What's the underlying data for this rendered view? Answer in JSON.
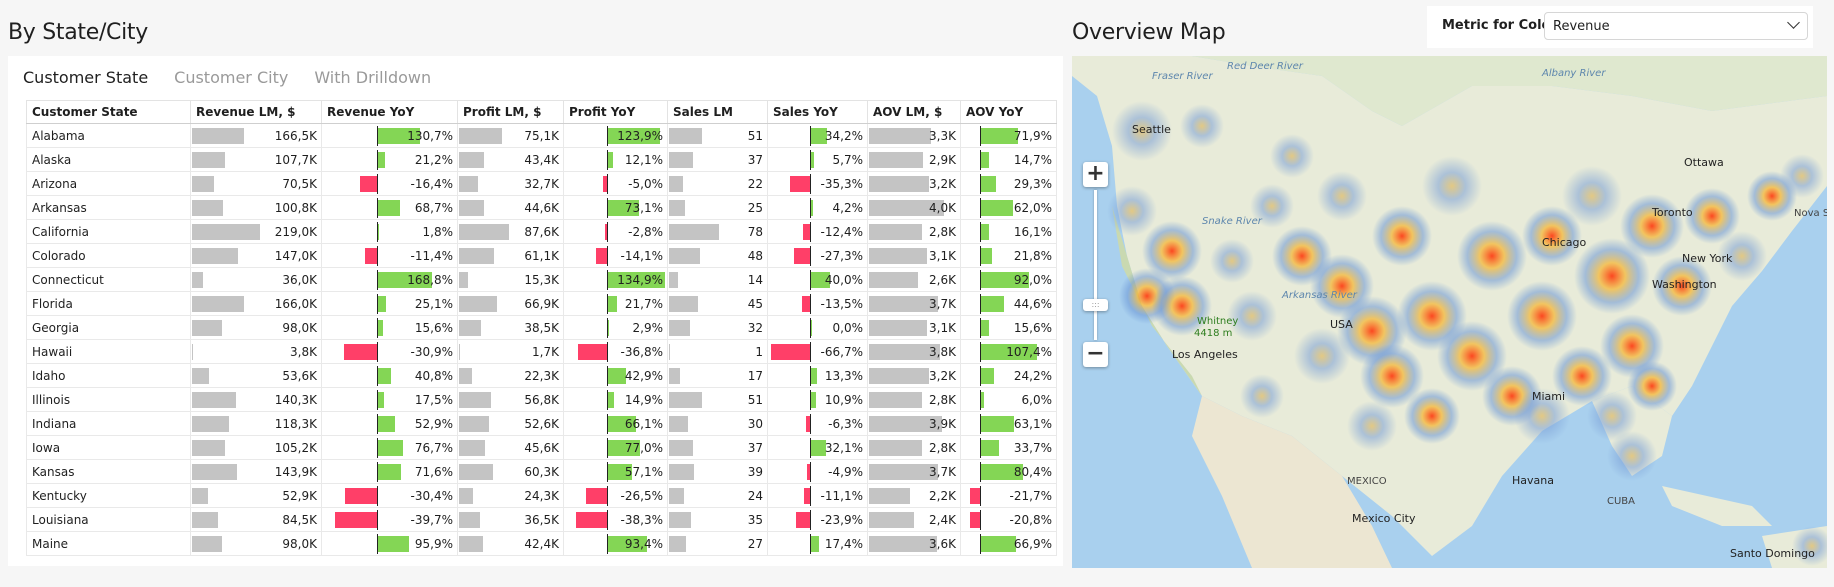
{
  "left_section": {
    "title": "By State/City"
  },
  "right_section": {
    "title": "Overview Map"
  },
  "tabs": [
    {
      "label": "Customer State",
      "active": true
    },
    {
      "label": "Customer City",
      "active": false
    },
    {
      "label": "With Drilldown",
      "active": false
    }
  ],
  "metric": {
    "label": "Metric for Color",
    "selected": "Revenue"
  },
  "colors": {
    "positive": "#84d655",
    "negative": "#ff3f68",
    "bar": "#c4c4c4"
  },
  "table": {
    "columns": [
      "Customer State",
      "Revenue LM, $",
      "Revenue YoY",
      "Profit LM, $",
      "Profit YoY",
      "Sales LM",
      "Sales YoY",
      "AOV LM, $",
      "AOV YoY"
    ],
    "rows": [
      {
        "state": "Alabama",
        "rev": "166,5K",
        "rev_n": 166.5,
        "rev_yoy": "130,7%",
        "rev_yoy_n": 130.7,
        "prof": "75,1K",
        "prof_n": 75.1,
        "prof_yoy": "123,9%",
        "prof_yoy_n": 123.9,
        "sales": "51",
        "sales_n": 51,
        "sales_yoy": "34,2%",
        "sales_yoy_n": 34.2,
        "aov": "3,3K",
        "aov_n": 3.3,
        "aov_yoy": "71,9%",
        "aov_yoy_n": 71.9
      },
      {
        "state": "Alaska",
        "rev": "107,7K",
        "rev_n": 107.7,
        "rev_yoy": "21,2%",
        "rev_yoy_n": 21.2,
        "prof": "43,4K",
        "prof_n": 43.4,
        "prof_yoy": "12,1%",
        "prof_yoy_n": 12.1,
        "sales": "37",
        "sales_n": 37,
        "sales_yoy": "5,7%",
        "sales_yoy_n": 5.7,
        "aov": "2,9K",
        "aov_n": 2.9,
        "aov_yoy": "14,7%",
        "aov_yoy_n": 14.7
      },
      {
        "state": "Arizona",
        "rev": "70,5K",
        "rev_n": 70.5,
        "rev_yoy": "-16,4%",
        "rev_yoy_n": -16.4,
        "prof": "32,7K",
        "prof_n": 32.7,
        "prof_yoy": "-5,0%",
        "prof_yoy_n": -5.0,
        "sales": "22",
        "sales_n": 22,
        "sales_yoy": "-35,3%",
        "sales_yoy_n": -35.3,
        "aov": "3,2K",
        "aov_n": 3.2,
        "aov_yoy": "29,3%",
        "aov_yoy_n": 29.3
      },
      {
        "state": "Arkansas",
        "rev": "100,8K",
        "rev_n": 100.8,
        "rev_yoy": "68,7%",
        "rev_yoy_n": 68.7,
        "prof": "44,6K",
        "prof_n": 44.6,
        "prof_yoy": "73,1%",
        "prof_yoy_n": 73.1,
        "sales": "25",
        "sales_n": 25,
        "sales_yoy": "4,2%",
        "sales_yoy_n": 4.2,
        "aov": "4,0K",
        "aov_n": 4.0,
        "aov_yoy": "62,0%",
        "aov_yoy_n": 62.0
      },
      {
        "state": "California",
        "rev": "219,0K",
        "rev_n": 219.0,
        "rev_yoy": "1,8%",
        "rev_yoy_n": 1.8,
        "prof": "87,6K",
        "prof_n": 87.6,
        "prof_yoy": "-2,8%",
        "prof_yoy_n": -2.8,
        "sales": "78",
        "sales_n": 78,
        "sales_yoy": "-12,4%",
        "sales_yoy_n": -12.4,
        "aov": "2,8K",
        "aov_n": 2.8,
        "aov_yoy": "16,1%",
        "aov_yoy_n": 16.1
      },
      {
        "state": "Colorado",
        "rev": "147,0K",
        "rev_n": 147.0,
        "rev_yoy": "-11,4%",
        "rev_yoy_n": -11.4,
        "prof": "61,1K",
        "prof_n": 61.1,
        "prof_yoy": "-14,1%",
        "prof_yoy_n": -14.1,
        "sales": "48",
        "sales_n": 48,
        "sales_yoy": "-27,3%",
        "sales_yoy_n": -27.3,
        "aov": "3,1K",
        "aov_n": 3.1,
        "aov_yoy": "21,8%",
        "aov_yoy_n": 21.8
      },
      {
        "state": "Connecticut",
        "rev": "36,0K",
        "rev_n": 36.0,
        "rev_yoy": "168,8%",
        "rev_yoy_n": 168.8,
        "prof": "15,3K",
        "prof_n": 15.3,
        "prof_yoy": "134,9%",
        "prof_yoy_n": 134.9,
        "sales": "14",
        "sales_n": 14,
        "sales_yoy": "40,0%",
        "sales_yoy_n": 40.0,
        "aov": "2,6K",
        "aov_n": 2.6,
        "aov_yoy": "92,0%",
        "aov_yoy_n": 92.0
      },
      {
        "state": "Florida",
        "rev": "166,0K",
        "rev_n": 166.0,
        "rev_yoy": "25,1%",
        "rev_yoy_n": 25.1,
        "prof": "66,9K",
        "prof_n": 66.9,
        "prof_yoy": "21,7%",
        "prof_yoy_n": 21.7,
        "sales": "45",
        "sales_n": 45,
        "sales_yoy": "-13,5%",
        "sales_yoy_n": -13.5,
        "aov": "3,7K",
        "aov_n": 3.7,
        "aov_yoy": "44,6%",
        "aov_yoy_n": 44.6
      },
      {
        "state": "Georgia",
        "rev": "98,0K",
        "rev_n": 98.0,
        "rev_yoy": "15,6%",
        "rev_yoy_n": 15.6,
        "prof": "38,5K",
        "prof_n": 38.5,
        "prof_yoy": "2,9%",
        "prof_yoy_n": 2.9,
        "sales": "32",
        "sales_n": 32,
        "sales_yoy": "0,0%",
        "sales_yoy_n": 0.0,
        "aov": "3,1K",
        "aov_n": 3.1,
        "aov_yoy": "15,6%",
        "aov_yoy_n": 15.6
      },
      {
        "state": "Hawaii",
        "rev": "3,8K",
        "rev_n": 3.8,
        "rev_yoy": "-30,9%",
        "rev_yoy_n": -30.9,
        "prof": "1,7K",
        "prof_n": 1.7,
        "prof_yoy": "-36,8%",
        "prof_yoy_n": -36.8,
        "sales": "1",
        "sales_n": 1,
        "sales_yoy": "-66,7%",
        "sales_yoy_n": -66.7,
        "aov": "3,8K",
        "aov_n": 3.8,
        "aov_yoy": "107,4%",
        "aov_yoy_n": 107.4
      },
      {
        "state": "Idaho",
        "rev": "53,6K",
        "rev_n": 53.6,
        "rev_yoy": "40,8%",
        "rev_yoy_n": 40.8,
        "prof": "22,3K",
        "prof_n": 22.3,
        "prof_yoy": "42,9%",
        "prof_yoy_n": 42.9,
        "sales": "17",
        "sales_n": 17,
        "sales_yoy": "13,3%",
        "sales_yoy_n": 13.3,
        "aov": "3,2K",
        "aov_n": 3.2,
        "aov_yoy": "24,2%",
        "aov_yoy_n": 24.2
      },
      {
        "state": "Illinois",
        "rev": "140,3K",
        "rev_n": 140.3,
        "rev_yoy": "17,5%",
        "rev_yoy_n": 17.5,
        "prof": "56,8K",
        "prof_n": 56.8,
        "prof_yoy": "14,9%",
        "prof_yoy_n": 14.9,
        "sales": "51",
        "sales_n": 51,
        "sales_yoy": "10,9%",
        "sales_yoy_n": 10.9,
        "aov": "2,8K",
        "aov_n": 2.8,
        "aov_yoy": "6,0%",
        "aov_yoy_n": 6.0
      },
      {
        "state": "Indiana",
        "rev": "118,3K",
        "rev_n": 118.3,
        "rev_yoy": "52,9%",
        "rev_yoy_n": 52.9,
        "prof": "52,6K",
        "prof_n": 52.6,
        "prof_yoy": "66,1%",
        "prof_yoy_n": 66.1,
        "sales": "30",
        "sales_n": 30,
        "sales_yoy": "-6,3%",
        "sales_yoy_n": -6.3,
        "aov": "3,9K",
        "aov_n": 3.9,
        "aov_yoy": "63,1%",
        "aov_yoy_n": 63.1
      },
      {
        "state": "Iowa",
        "rev": "105,2K",
        "rev_n": 105.2,
        "rev_yoy": "76,7%",
        "rev_yoy_n": 76.7,
        "prof": "45,6K",
        "prof_n": 45.6,
        "prof_yoy": "77,0%",
        "prof_yoy_n": 77.0,
        "sales": "37",
        "sales_n": 37,
        "sales_yoy": "32,1%",
        "sales_yoy_n": 32.1,
        "aov": "2,8K",
        "aov_n": 2.8,
        "aov_yoy": "33,7%",
        "aov_yoy_n": 33.7
      },
      {
        "state": "Kansas",
        "rev": "143,9K",
        "rev_n": 143.9,
        "rev_yoy": "71,6%",
        "rev_yoy_n": 71.6,
        "prof": "60,3K",
        "prof_n": 60.3,
        "prof_yoy": "57,1%",
        "prof_yoy_n": 57.1,
        "sales": "39",
        "sales_n": 39,
        "sales_yoy": "-4,9%",
        "sales_yoy_n": -4.9,
        "aov": "3,7K",
        "aov_n": 3.7,
        "aov_yoy": "80,4%",
        "aov_yoy_n": 80.4
      },
      {
        "state": "Kentucky",
        "rev": "52,9K",
        "rev_n": 52.9,
        "rev_yoy": "-30,4%",
        "rev_yoy_n": -30.4,
        "prof": "24,3K",
        "prof_n": 24.3,
        "prof_yoy": "-26,5%",
        "prof_yoy_n": -26.5,
        "sales": "24",
        "sales_n": 24,
        "sales_yoy": "-11,1%",
        "sales_yoy_n": -11.1,
        "aov": "2,2K",
        "aov_n": 2.2,
        "aov_yoy": "-21,7%",
        "aov_yoy_n": -21.7
      },
      {
        "state": "Louisiana",
        "rev": "84,5K",
        "rev_n": 84.5,
        "rev_yoy": "-39,7%",
        "rev_yoy_n": -39.7,
        "prof": "36,5K",
        "prof_n": 36.5,
        "prof_yoy": "-38,3%",
        "prof_yoy_n": -38.3,
        "sales": "35",
        "sales_n": 35,
        "sales_yoy": "-23,9%",
        "sales_yoy_n": -23.9,
        "aov": "2,4K",
        "aov_n": 2.4,
        "aov_yoy": "-20,8%",
        "aov_yoy_n": -20.8
      },
      {
        "state": "Maine",
        "rev": "98,0K",
        "rev_n": 98.0,
        "rev_yoy": "95,9%",
        "rev_yoy_n": 95.9,
        "prof": "42,4K",
        "prof_n": 42.4,
        "prof_yoy": "93,4%",
        "prof_yoy_n": 93.4,
        "sales": "27",
        "sales_n": 27,
        "sales_yoy": "17,4%",
        "sales_yoy_n": 17.4,
        "aov": "3,6K",
        "aov_n": 3.6,
        "aov_yoy": "66,9%",
        "aov_yoy_n": 66.9
      }
    ]
  },
  "map": {
    "zoom_in": "+",
    "zoom_out": "−",
    "labels": {
      "ottawa": "Ottawa",
      "toronto": "Toronto",
      "new_york": "New York",
      "washington": "Washington",
      "chicago": "Chicago",
      "los_angeles": "Los Angeles",
      "whitney": "Whitney",
      "whitney_elev": "4418 m",
      "usa": "USA",
      "mexico": "MEXICO",
      "mexico_city": "Mexico City",
      "havana": "Havana",
      "cuba": "CUBA",
      "miami": "Miami",
      "santo_domingo": "Santo Domingo",
      "seattle": "Seattle",
      "nova_scotia": "Nova Scotia",
      "fraser": "Fraser River",
      "red_deer": "Red Deer River",
      "albany": "Albany River",
      "arkansas": "Arkansas River",
      "snake": "Snake River"
    }
  }
}
